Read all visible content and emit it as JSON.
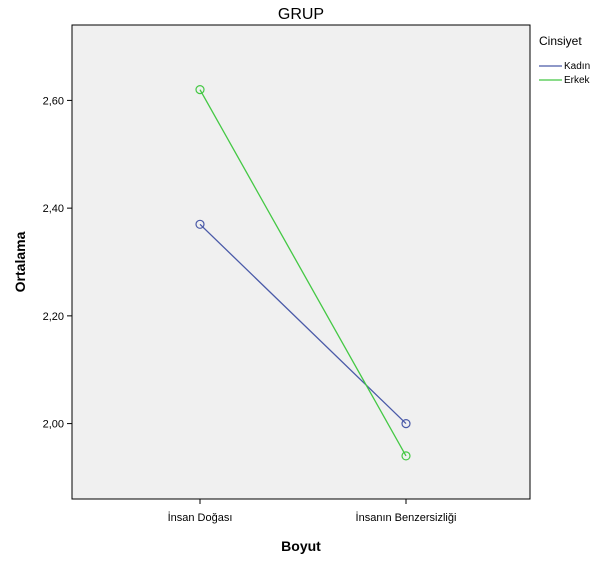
{
  "chart_data": {
    "type": "line",
    "title": "GRUP",
    "xlabel": "Boyut",
    "ylabel": "Ortalama",
    "categories": [
      "İnsan Doğası",
      "İnsanın Benzersizliği"
    ],
    "ylim": [
      1.86,
      2.74
    ],
    "yticks": [
      "2,00",
      "2,20",
      "2,40",
      "2,60"
    ],
    "ytick_values": [
      2.0,
      2.2,
      2.4,
      2.6
    ],
    "grid": false,
    "legend": {
      "title": "Cinsiyet",
      "placement": "right"
    },
    "series": [
      {
        "name": "Kadın",
        "values": [
          2.37,
          2.0
        ],
        "color": "#4a5aa8"
      },
      {
        "name": "Erkek",
        "values": [
          2.62,
          1.94
        ],
        "color": "#44c844"
      }
    ]
  },
  "colors": {
    "plot_background": "#f0f0f0",
    "axis": "#000000"
  }
}
